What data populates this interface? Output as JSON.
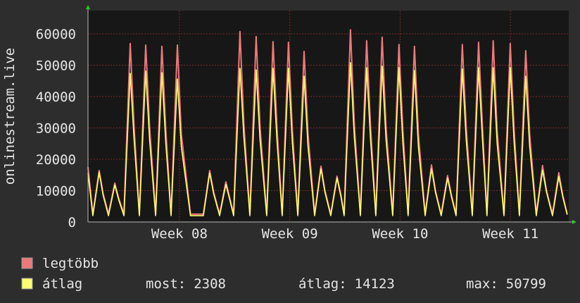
{
  "chart_data": {
    "type": "line",
    "ylabel": "onlinestream.live",
    "x": [
      0,
      0.31,
      0.71,
      0.96,
      1.3,
      1.7,
      1.95,
      2.28,
      2.68,
      2.93,
      3.26,
      3.66,
      3.91,
      4.29,
      4.69,
      4.94,
      5.27,
      5.67,
      5.92,
      6.5,
      7.32,
      7.72,
      7.97,
      8.35,
      8.75,
      9.0,
      9.24,
      9.64,
      9.89,
      10.27,
      10.67,
      10.92,
      11.34,
      11.74,
      11.99,
      12.32,
      12.72,
      12.97,
      13.31,
      13.71,
      13.96,
      14.38,
      14.78,
      15.03,
      15.4,
      15.8,
      16.05,
      16.25,
      16.65,
      16.9,
      17.28,
      17.68,
      17.93,
      18.26,
      18.66,
      18.91,
      19.33,
      19.73,
      19.98,
      20.31,
      20.71,
      20.96,
      21.39,
      21.79,
      22.04,
      22.41,
      22.81,
      23.06,
      23.35,
      23.75,
      24.0,
      24.38,
      24.78,
      25.03,
      25.31,
      25.71,
      25.96,
      26.39,
      26.79,
      27.04,
      27.37,
      27.77,
      28.02,
      28.44,
      28.84,
      29.09,
      29.47,
      29.87,
      30.12,
      30.4
    ],
    "series": [
      {
        "name": "legtöbb",
        "color": "#f07878",
        "values": [
          17500,
          2500,
          16400,
          9000,
          2500,
          12400,
          7500,
          2500,
          56900,
          30000,
          2500,
          56400,
          30000,
          2500,
          56000,
          29000,
          2500,
          56400,
          28000,
          2500,
          2500,
          16400,
          9500,
          2500,
          12800,
          7500,
          2500,
          60700,
          31000,
          2500,
          59100,
          30000,
          2500,
          57500,
          30000,
          2500,
          57300,
          29000,
          2500,
          54400,
          28000,
          2500,
          17800,
          10000,
          2500,
          14600,
          8500,
          2500,
          61300,
          31000,
          2500,
          57800,
          30000,
          2500,
          58900,
          30000,
          2500,
          56600,
          29000,
          2500,
          56000,
          28000,
          2500,
          18200,
          10000,
          2500,
          14800,
          8500,
          2500,
          56600,
          30000,
          2500,
          57300,
          30000,
          2500,
          57800,
          29000,
          2500,
          56900,
          29000,
          2500,
          54600,
          28000,
          2500,
          18000,
          10000,
          2500,
          15700,
          8500,
          2600
        ]
      },
      {
        "name": "átlag",
        "color": "#ffff70",
        "values": [
          15500,
          2000,
          15800,
          8500,
          2000,
          11800,
          7000,
          2000,
          47400,
          26000,
          2000,
          48100,
          26000,
          2000,
          47600,
          25000,
          2000,
          45600,
          24000,
          2000,
          2000,
          15600,
          9000,
          2000,
          12000,
          7000,
          2000,
          49000,
          27000,
          2000,
          48500,
          26000,
          2000,
          49000,
          26000,
          2000,
          49000,
          25000,
          2000,
          46500,
          24000,
          2000,
          17000,
          9500,
          2000,
          14000,
          8000,
          2000,
          50799,
          27000,
          2000,
          49200,
          26000,
          2000,
          49700,
          26000,
          2000,
          49200,
          25000,
          2000,
          48300,
          24000,
          2000,
          17000,
          9500,
          2000,
          14000,
          8000,
          2000,
          48800,
          26000,
          2000,
          49200,
          26000,
          2000,
          49200,
          25000,
          2000,
          49200,
          25000,
          2000,
          46500,
          24000,
          2000,
          16500,
          9500,
          2000,
          14500,
          8000,
          2308
        ]
      }
    ],
    "xlim": [
      0,
      30.5
    ],
    "xticks": [
      {
        "value": 5.8,
        "label": "Week 08"
      },
      {
        "value": 12.8,
        "label": "Week 09"
      },
      {
        "value": 19.8,
        "label": "Week 10"
      },
      {
        "value": 26.8,
        "label": "Week 11"
      }
    ],
    "ylim": [
      0,
      67400
    ],
    "yticks": [
      0,
      10000,
      20000,
      30000,
      40000,
      50000,
      60000
    ],
    "grid": true,
    "stats": [
      {
        "label": "most:",
        "value": 2308
      },
      {
        "label": "átlag:",
        "value": 14123
      },
      {
        "label": "max:",
        "value": 50799
      }
    ]
  }
}
